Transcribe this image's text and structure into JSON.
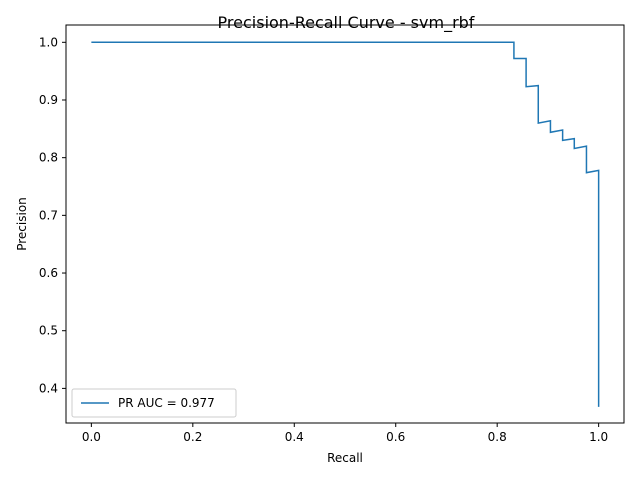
{
  "chart_data": {
    "type": "line",
    "title": "Precision-Recall Curve - svm_rbf",
    "xlabel": "Recall",
    "ylabel": "Precision",
    "xlim": [
      -0.05,
      1.05
    ],
    "ylim": [
      0.34,
      1.03
    ],
    "xticks": [
      0.0,
      0.2,
      0.4,
      0.6,
      0.8,
      1.0
    ],
    "yticks": [
      0.4,
      0.5,
      0.6,
      0.7,
      0.8,
      0.9,
      1.0
    ],
    "xtick_labels": [
      "0.0",
      "0.2",
      "0.4",
      "0.6",
      "0.8",
      "1.0"
    ],
    "ytick_labels": [
      "0.4",
      "0.5",
      "0.6",
      "0.7",
      "0.8",
      "0.9",
      "1.0"
    ],
    "grid": false,
    "legend": {
      "position": "lower-left",
      "entries": [
        "PR AUC = 0.977"
      ]
    },
    "series": [
      {
        "name": "PR AUC = 0.977",
        "color": "#1f77b4",
        "drawstyle": "steps-post",
        "x": [
          0.0,
          0.833,
          0.833,
          0.857,
          0.857,
          0.881,
          0.881,
          0.905,
          0.905,
          0.929,
          0.929,
          0.952,
          0.952,
          0.976,
          0.976,
          1.0,
          1.0
        ],
        "y": [
          1.0,
          1.0,
          0.972,
          0.972,
          0.923,
          0.925,
          0.86,
          0.864,
          0.844,
          0.848,
          0.83,
          0.833,
          0.816,
          0.82,
          0.774,
          0.778,
          0.368
        ]
      }
    ]
  }
}
